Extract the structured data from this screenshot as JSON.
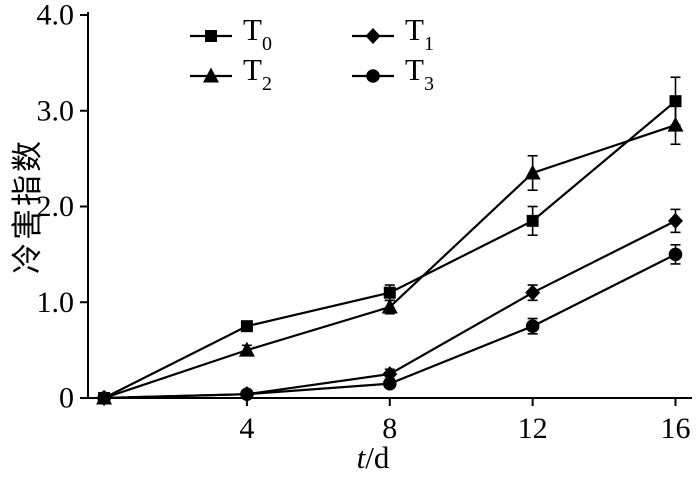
{
  "chart_data": {
    "type": "line",
    "title": "",
    "xlabel_italic": "t",
    "xlabel_rest": "/d",
    "ylabel": "冷害指数",
    "x": [
      0,
      4,
      8,
      12,
      16
    ],
    "xlim": [
      -0.45,
      16.35
    ],
    "ylim": [
      0,
      4.0
    ],
    "xticks": [
      4,
      8,
      12,
      16
    ],
    "ytick_values": [
      0,
      1,
      2,
      3,
      4
    ],
    "yticks": [
      "0",
      "1.0",
      "2.0",
      "3.0",
      "4.0"
    ],
    "grid": false,
    "legend_position": "top-left-inside",
    "line_color": "#000000",
    "axis_color": "#000000",
    "series": [
      {
        "name": "T0",
        "label_base": "T",
        "label_sub": "0",
        "marker": "square",
        "values": [
          0,
          0.75,
          1.1,
          1.85,
          3.1
        ],
        "errors": [
          0,
          0.05,
          0.08,
          0.15,
          0.25
        ]
      },
      {
        "name": "T1",
        "label_base": "T",
        "label_sub": "1",
        "marker": "diamond",
        "values": [
          0,
          0.04,
          0.25,
          1.1,
          1.85
        ],
        "errors": [
          0,
          0,
          0.05,
          0.08,
          0.12
        ]
      },
      {
        "name": "T2",
        "label_base": "T",
        "label_sub": "2",
        "marker": "triangle",
        "values": [
          0,
          0.5,
          0.95,
          2.35,
          2.85
        ],
        "errors": [
          0,
          0.05,
          0.07,
          0.18,
          0.2
        ]
      },
      {
        "name": "T3",
        "label_base": "T",
        "label_sub": "3",
        "marker": "circle",
        "values": [
          0,
          0.04,
          0.15,
          0.75,
          1.5
        ],
        "errors": [
          0,
          0,
          0.04,
          0.08,
          0.1
        ]
      }
    ]
  }
}
